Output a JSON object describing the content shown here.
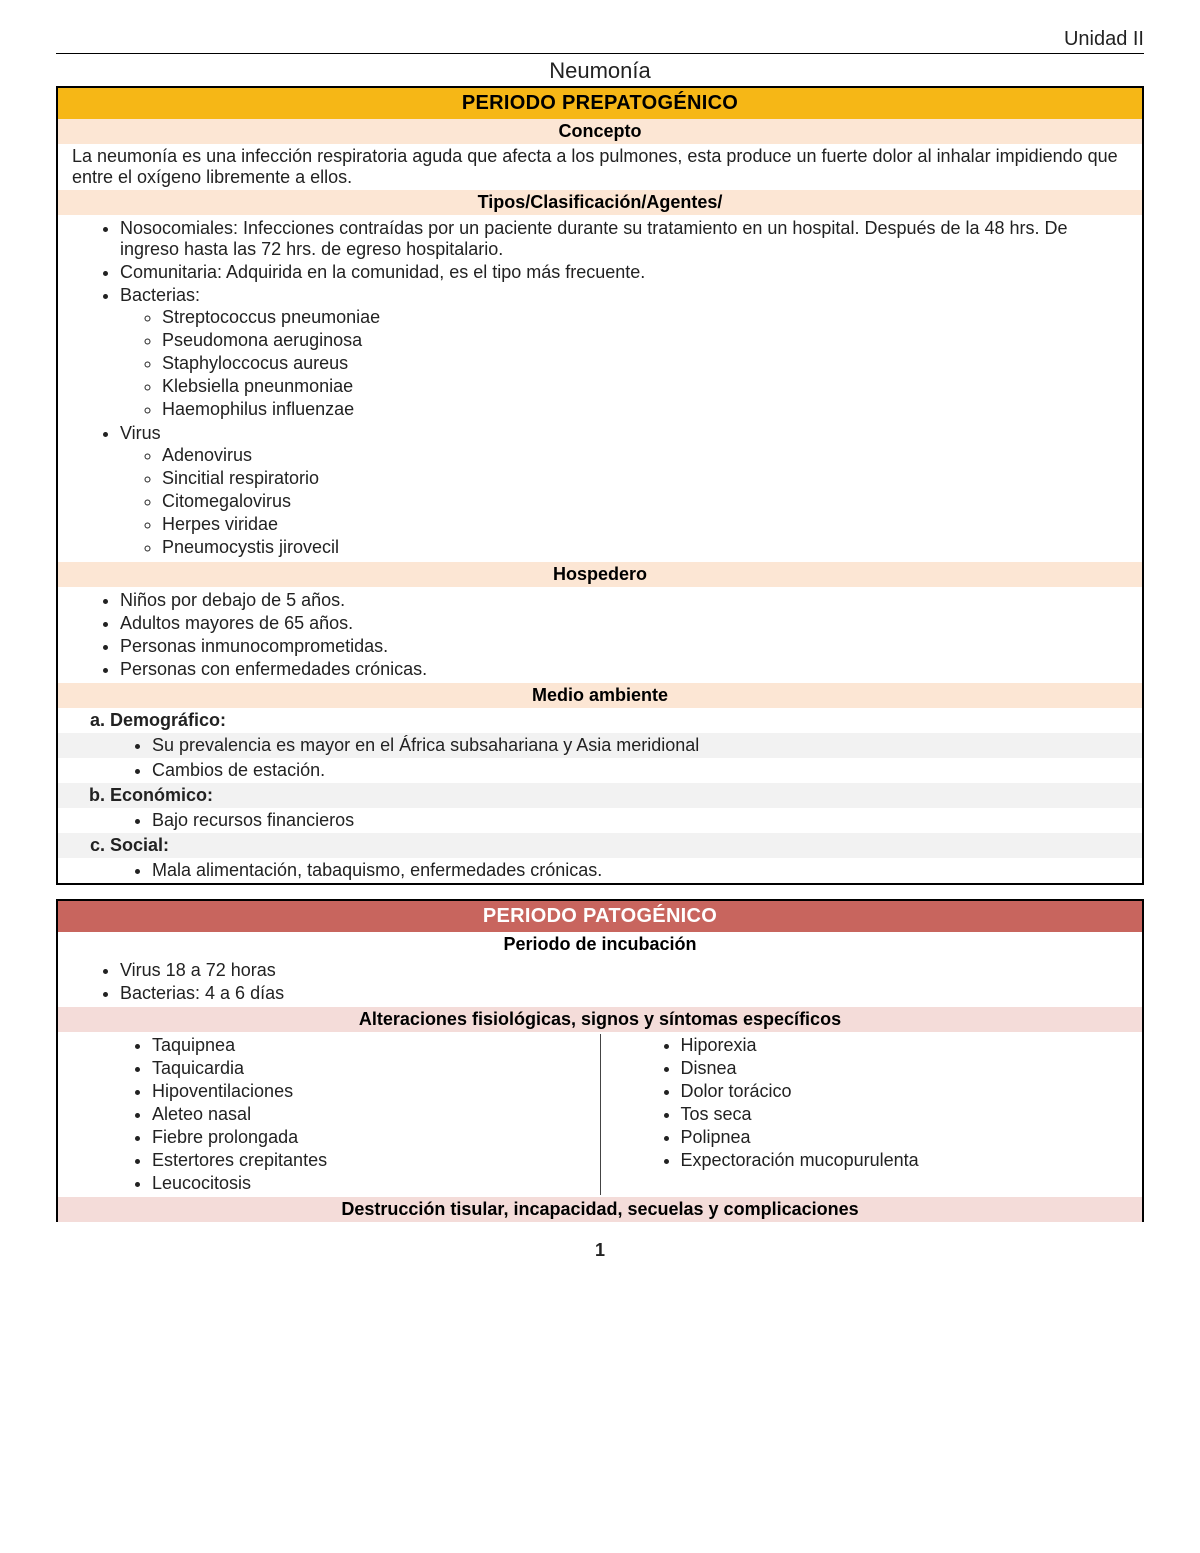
{
  "header": {
    "unit": "Unidad II",
    "title": "Neumonía",
    "page_number": "1"
  },
  "colors": {
    "band_yellow": "#f6b716",
    "band_red": "#c8655e",
    "sub_peach": "#fce6d4",
    "sub_pink": "#f4dcd9",
    "stripe": "#f2f2f2"
  },
  "section1": {
    "band": "PERIODO PREPATOGÉNICO",
    "concepto_hdr": "Concepto",
    "concepto_text": "La neumonía es una infección respiratoria aguda que afecta a los pulmones, esta produce un fuerte dolor al inhalar impidiendo que entre el oxígeno libremente a ellos.",
    "tipos_hdr": "Tipos/Clasificación/Agentes/",
    "tipo_noso": "Nosocomiales: Infecciones contraídas por un paciente durante su tratamiento en un hospital. Después de la 48 hrs. De ingreso hasta las 72 hrs. de egreso hospitalario.",
    "tipo_com": "Comunitaria: Adquirida en la comunidad, es el tipo más frecuente.",
    "bact_label": "Bacterias:",
    "bacterias": [
      "Streptococcus pneumoniae",
      "Pseudomona aeruginosa",
      "Staphyloccocus aureus",
      "Klebsiella pneunmoniae",
      "Haemophilus influenzae"
    ],
    "virus_label": "Virus",
    "virus": [
      "Adenovirus",
      "Sincitial respiratorio",
      "Citomegalovirus",
      "Herpes viridae",
      "Pneumocystis jirovecil"
    ],
    "hosp_hdr": "Hospedero",
    "hospedero": [
      "Niños por debajo de 5 años.",
      "Adultos mayores de 65 años.",
      "Personas inmunocomprometidas.",
      "Personas con enfermedades crónicas."
    ],
    "medio_hdr": "Medio ambiente",
    "medio_a": "Demográfico:",
    "medio_a_items": [
      "Su prevalencia es mayor en el África subsahariana y Asia meridional",
      "Cambios de estación."
    ],
    "medio_b": "Económico:",
    "medio_b_items": [
      "Bajo recursos financieros"
    ],
    "medio_c": "Social:",
    "medio_c_items": [
      "Mala alimentación, tabaquismo, enfermedades crónicas."
    ]
  },
  "section2": {
    "band": "PERIODO PATOGÉNICO",
    "incub_hdr": "Periodo de incubación",
    "incubacion": [
      "Virus 18 a 72 horas",
      "Bacterias: 4 a 6 días"
    ],
    "alter_hdr": "Alteraciones fisiológicas, signos y síntomas específicos",
    "sintomas_left": [
      "Taquipnea",
      "Taquicardia",
      "Hipoventilaciones",
      "Aleteo nasal",
      "Fiebre prolongada",
      "Estertores crepitantes",
      "Leucocitosis"
    ],
    "sintomas_right": [
      "Hiporexia",
      "Disnea",
      "Dolor torácico",
      "Tos seca",
      "Polipnea",
      "Expectoración mucopurulenta"
    ],
    "destr_hdr": "Destrucción tisular, incapacidad, secuelas y complicaciones"
  }
}
